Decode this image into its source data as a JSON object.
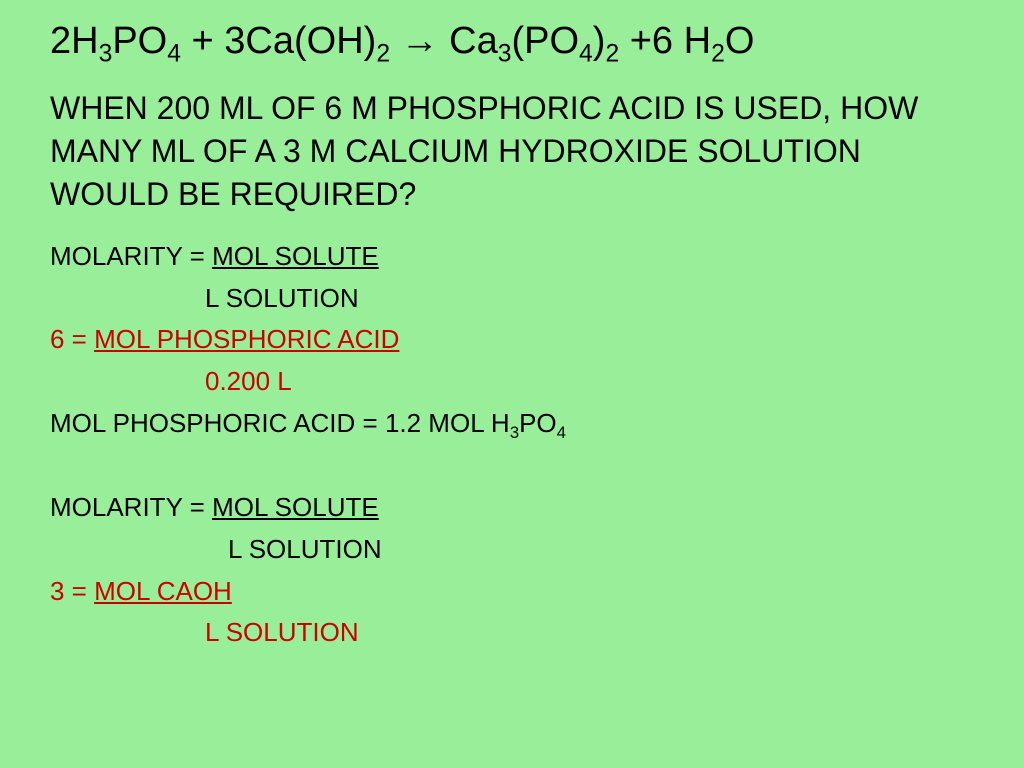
{
  "slide": {
    "background_color": "#99ee99",
    "text_black": "#000000",
    "text_red": "#cc0000",
    "equation": {
      "lhs1_coef": "2",
      "lhs1": "H",
      "lhs1_sub1": "3",
      "lhs1_mid": "PO",
      "lhs1_sub2": "4",
      "plus1": " + ",
      "lhs2_coef": "3",
      "lhs2": "Ca(OH)",
      "lhs2_sub": "2",
      "arrow": " → ",
      "rhs1": "Ca",
      "rhs1_sub1": "3",
      "rhs1_mid": "(PO",
      "rhs1_sub2": "4",
      "rhs1_end": ")",
      "rhs1_sub3": "2",
      "plus2": " +",
      "rhs2_coef": "6 ",
      "rhs2": "H",
      "rhs2_sub": "2",
      "rhs2_end": "O"
    },
    "question": "When 200 mL of 6 M phosphoric acid is used, how many mL of a 3 M calcium hydroxide solution would be required?",
    "lines": {
      "l1a": "Molarity = ",
      "l1b": "mol solute",
      "l2": "L solution",
      "l3a": "6 = ",
      "l3b": "mol phosphoric acid",
      "l4": "0.200 L",
      "l5a": "mol phosphoric acid = 1.2 mol H",
      "l5b": "3",
      "l5c": "PO",
      "l5d": "4",
      "l6a": "Molarity =  ",
      "l6b": "mol solute",
      "l7": "L solution",
      "l8a": "3 = ",
      "l8b": "mol CaOH",
      "l9": "L solution"
    }
  }
}
